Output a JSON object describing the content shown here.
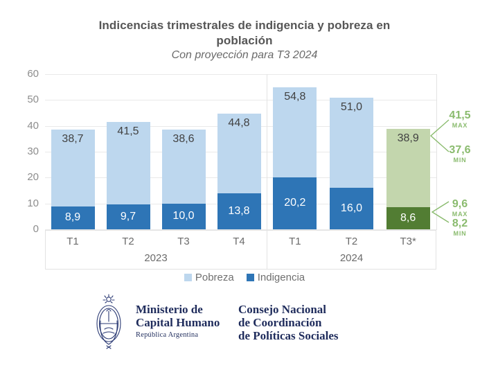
{
  "title": {
    "line1": "Indicencias trimestrales de indigencia y pobreza en",
    "line2": "población"
  },
  "subtitle": "Con proyección para T3 2024",
  "chart_data": {
    "type": "bar",
    "stacked": true,
    "title": "Indicencias trimestrales de indigencia y pobreza en población",
    "subtitle": "Con proyección para T3 2024",
    "ylim": [
      0,
      60
    ],
    "yticks": [
      0,
      10,
      20,
      30,
      40,
      50,
      60
    ],
    "grid": true,
    "legend_position": "bottom",
    "legend": [
      "Pobreza",
      "Indigencia"
    ],
    "groups": [
      {
        "year": "2023",
        "quarters": [
          "T1",
          "T2",
          "T3",
          "T4"
        ]
      },
      {
        "year": "2024",
        "quarters": [
          "T1",
          "T2",
          "T3*"
        ]
      }
    ],
    "categories": [
      "T1 2023",
      "T2 2023",
      "T3 2023",
      "T4 2023",
      "T1 2024",
      "T2 2024",
      "T3* 2024"
    ],
    "series": [
      {
        "name": "Pobreza",
        "values": [
          38.7,
          41.5,
          38.6,
          44.8,
          54.8,
          51.0,
          38.9
        ]
      },
      {
        "name": "Indigencia",
        "values": [
          8.9,
          9.7,
          10.0,
          13.8,
          20.2,
          16.0,
          8.6
        ]
      }
    ],
    "value_labels_pobreza": [
      "38,7",
      "41,5",
      "38,6",
      "44,8",
      "54,8",
      "51,0",
      "38,9"
    ],
    "value_labels_indigencia": [
      "8,9",
      "9,7",
      "10,0",
      "13,8",
      "20,2",
      "16,0",
      "8,6"
    ],
    "projection_index": 6,
    "projection_annotations": {
      "pobreza": {
        "max_value": "41,5",
        "max_caption": "MAX",
        "min_value": "37,6",
        "min_caption": "MIN"
      },
      "indigencia": {
        "max_value": "9,6",
        "max_caption": "MAX",
        "min_value": "8,2",
        "min_caption": "MIN"
      }
    },
    "colors": {
      "pobreza": "#bdd7ee",
      "indigencia": "#2e75b6",
      "pobreza_projection": "#c3d6ad",
      "indigencia_projection": "#527d33",
      "annotation_green": "#8abb6e",
      "grid": "#e9e9e9",
      "axis_text": "#8d8d8d"
    }
  },
  "legend": {
    "pobreza": "Pobreza",
    "indigencia": "Indigencia"
  },
  "footer": {
    "ministry_line1": "Ministerio de",
    "ministry_line2": "Capital Humano",
    "ministry_sub": "República Argentina",
    "council_line1": "Consejo Nacional",
    "council_line2": "de Coordinación",
    "council_line3": "de Políticas Sociales"
  }
}
